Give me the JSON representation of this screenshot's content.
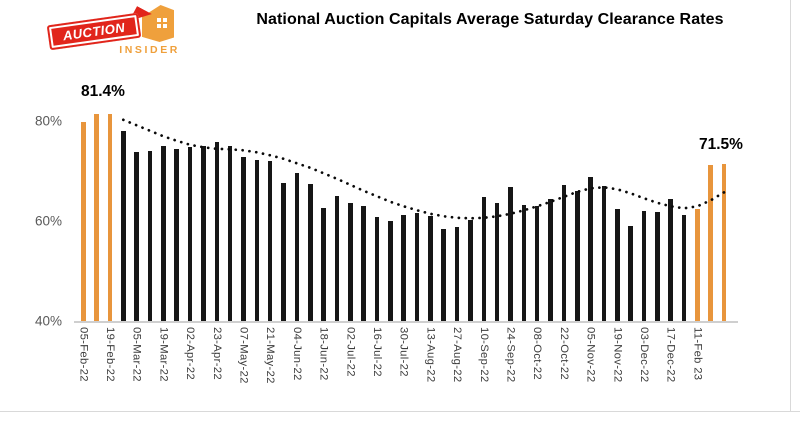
{
  "logo": {
    "brand_top": "AUCTION",
    "brand_bottom": "INSIDER",
    "colors": {
      "red": "#e1251b",
      "orange": "#efa03c"
    }
  },
  "header": {
    "title": "National Auction Capitals Average Saturday Clearance Rates"
  },
  "annotations": {
    "start_value": "81.4%",
    "end_value": "71.5%"
  },
  "chart_data": {
    "type": "bar",
    "title": "National Auction Capitals Average Saturday Clearance Rates",
    "xlabel": "",
    "ylabel": "",
    "ylim": [
      40,
      84
    ],
    "grid": false,
    "legend": false,
    "yticks": [
      {
        "value": 80,
        "label": "80%"
      },
      {
        "value": 60,
        "label": "60%"
      },
      {
        "value": 40,
        "label": "40%"
      }
    ],
    "values": [
      79.9,
      81.4,
      81.4,
      78.0,
      73.8,
      74.1,
      75.1,
      74.5,
      74.9,
      75.1,
      75.9,
      75.1,
      72.9,
      72.3,
      72.0,
      67.6,
      69.6,
      67.5,
      62.6,
      65.0,
      63.6,
      63.0,
      60.8,
      60.0,
      61.2,
      61.7,
      61.0,
      58.5,
      58.9,
      60.3,
      64.8,
      63.6,
      66.9,
      63.3,
      63.0,
      64.5,
      67.3,
      66.1,
      68.9,
      67.0,
      62.5,
      59.0,
      62.1,
      61.8,
      64.5,
      61.2,
      62.4,
      71.2,
      71.5
    ],
    "trend": [
      null,
      null,
      null,
      80.3,
      79.2,
      78.1,
      77.0,
      76.1,
      75.3,
      74.8,
      74.5,
      74.4,
      74.2,
      73.8,
      73.2,
      72.5,
      71.6,
      70.7,
      69.6,
      68.5,
      67.3,
      66.1,
      65.0,
      63.9,
      63.0,
      62.2,
      61.5,
      61.0,
      60.7,
      60.6,
      60.7,
      61.0,
      61.5,
      62.2,
      63.0,
      63.9,
      64.9,
      65.9,
      66.6,
      66.8,
      66.4,
      65.6,
      64.6,
      63.7,
      63.0,
      62.6,
      63.0,
      64.2,
      65.8
    ],
    "xticks": [
      {
        "index": 0,
        "label": "05-Feb-22"
      },
      {
        "index": 2,
        "label": "19-Feb-22"
      },
      {
        "index": 4,
        "label": "05-Mar-22"
      },
      {
        "index": 6,
        "label": "19-Mar-22"
      },
      {
        "index": 8,
        "label": "02-Apr-22"
      },
      {
        "index": 10,
        "label": "23-Apr-22"
      },
      {
        "index": 12,
        "label": "07-May-22"
      },
      {
        "index": 14,
        "label": "21-May-22"
      },
      {
        "index": 16,
        "label": "04-Jun-22"
      },
      {
        "index": 18,
        "label": "18-Jun-22"
      },
      {
        "index": 20,
        "label": "02-Jul-22"
      },
      {
        "index": 22,
        "label": "16-Jul-22"
      },
      {
        "index": 24,
        "label": "30-Jul-22"
      },
      {
        "index": 26,
        "label": "13-Aug-22"
      },
      {
        "index": 28,
        "label": "27-Aug-22"
      },
      {
        "index": 30,
        "label": "10-Sep-22"
      },
      {
        "index": 32,
        "label": "24-Sep-22"
      },
      {
        "index": 34,
        "label": "08-Oct-22"
      },
      {
        "index": 36,
        "label": "22-Oct-22"
      },
      {
        "index": 38,
        "label": "05-Nov-22"
      },
      {
        "index": 40,
        "label": "19-Nov-22"
      },
      {
        "index": 42,
        "label": "03-Dec-22"
      },
      {
        "index": 44,
        "label": "17-Dec-22"
      },
      {
        "index": 46,
        "label": "11-Feb 23"
      }
    ],
    "highlight": {
      "first_n": 3,
      "last_n": 3
    },
    "colors": {
      "bar": "#161616",
      "highlight": "#e8953c",
      "trend": "#0a0a0a",
      "axis_text": "#595959",
      "baseline": "#cfcfcf"
    }
  }
}
